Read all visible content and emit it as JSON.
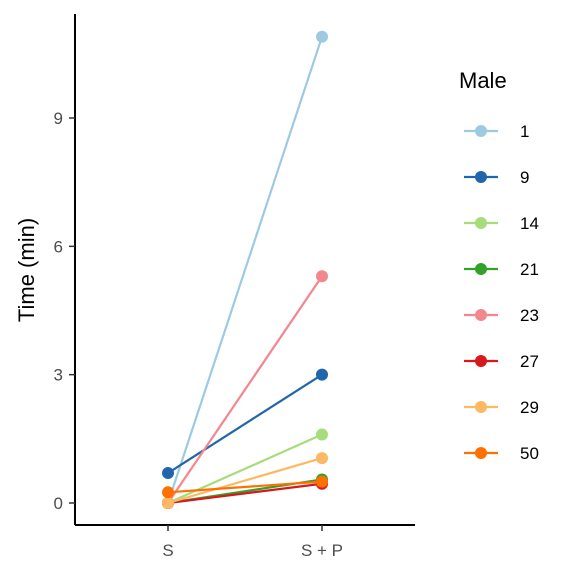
{
  "chart_data": {
    "type": "line",
    "title": "",
    "xlabel": "",
    "ylabel": "Time (min)",
    "categories": [
      "S",
      "S + P"
    ],
    "y_ticks": [
      0,
      3,
      6,
      9
    ],
    "ylim": [
      -0.5,
      11.5
    ],
    "grid": false,
    "legend": {
      "title": "Male",
      "position": "right"
    },
    "series": [
      {
        "name": "1",
        "color": "#9ecae1",
        "values": [
          0.0,
          10.9
        ]
      },
      {
        "name": "9",
        "color": "#2166ac",
        "values": [
          0.7,
          3.0
        ]
      },
      {
        "name": "14",
        "color": "#a6dc7a",
        "values": [
          0.0,
          1.6
        ]
      },
      {
        "name": "21",
        "color": "#33a02c",
        "values": [
          0.0,
          0.55
        ]
      },
      {
        "name": "23",
        "color": "#f4868e",
        "values": [
          0.0,
          5.3
        ]
      },
      {
        "name": "27",
        "color": "#d7191c",
        "values": [
          0.0,
          0.45
        ]
      },
      {
        "name": "29",
        "color": "#fdb863",
        "values": [
          0.0,
          1.05
        ]
      },
      {
        "name": "50",
        "color": "#ff7000",
        "values": [
          0.25,
          0.5
        ]
      }
    ]
  }
}
